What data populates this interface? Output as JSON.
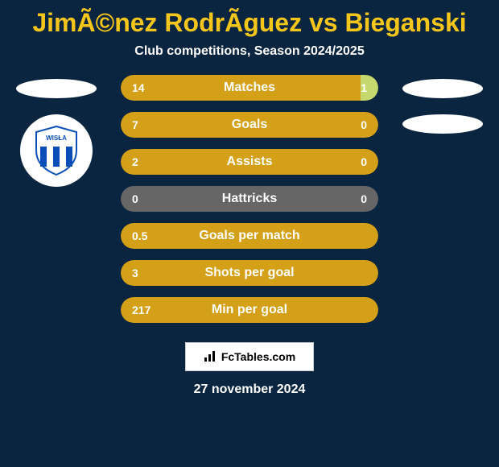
{
  "title": "JimÃ©nez RodrÃ­guez vs Bieganski",
  "subtitle": "Club competitions, Season 2024/2025",
  "date": "27 november 2024",
  "brand": "FcTables.com",
  "colors": {
    "background": "#0a2540",
    "title_color": "#f5c518",
    "text_color": "#ffffff",
    "player1_bar": "#d4a017",
    "player2_bar": "#c5d86d",
    "neutral_bar": "#666666",
    "placeholder": "#ffffff"
  },
  "club_logo": {
    "name": "Wisla Plock",
    "stripe_color": "#0a4fb8",
    "bg_color": "#ffffff"
  },
  "stats": [
    {
      "label": "Matches",
      "left_val": "14",
      "right_val": "1",
      "left_pct": 93,
      "left_color": "#d4a017",
      "right_color": "#c5d86d"
    },
    {
      "label": "Goals",
      "left_val": "7",
      "right_val": "0",
      "left_pct": 100,
      "left_color": "#d4a017",
      "right_color": "#c5d86d"
    },
    {
      "label": "Assists",
      "left_val": "2",
      "right_val": "0",
      "left_pct": 100,
      "left_color": "#d4a017",
      "right_color": "#c5d86d"
    },
    {
      "label": "Hattricks",
      "left_val": "0",
      "right_val": "0",
      "left_pct": 0,
      "left_color": "#666666",
      "right_color": "#666666"
    },
    {
      "label": "Goals per match",
      "left_val": "0.5",
      "right_val": "",
      "left_pct": 100,
      "left_color": "#d4a017",
      "right_color": "#d4a017"
    },
    {
      "label": "Shots per goal",
      "left_val": "3",
      "right_val": "",
      "left_pct": 100,
      "left_color": "#d4a017",
      "right_color": "#d4a017"
    },
    {
      "label": "Min per goal",
      "left_val": "217",
      "right_val": "",
      "left_pct": 100,
      "left_color": "#d4a017",
      "right_color": "#d4a017"
    }
  ]
}
